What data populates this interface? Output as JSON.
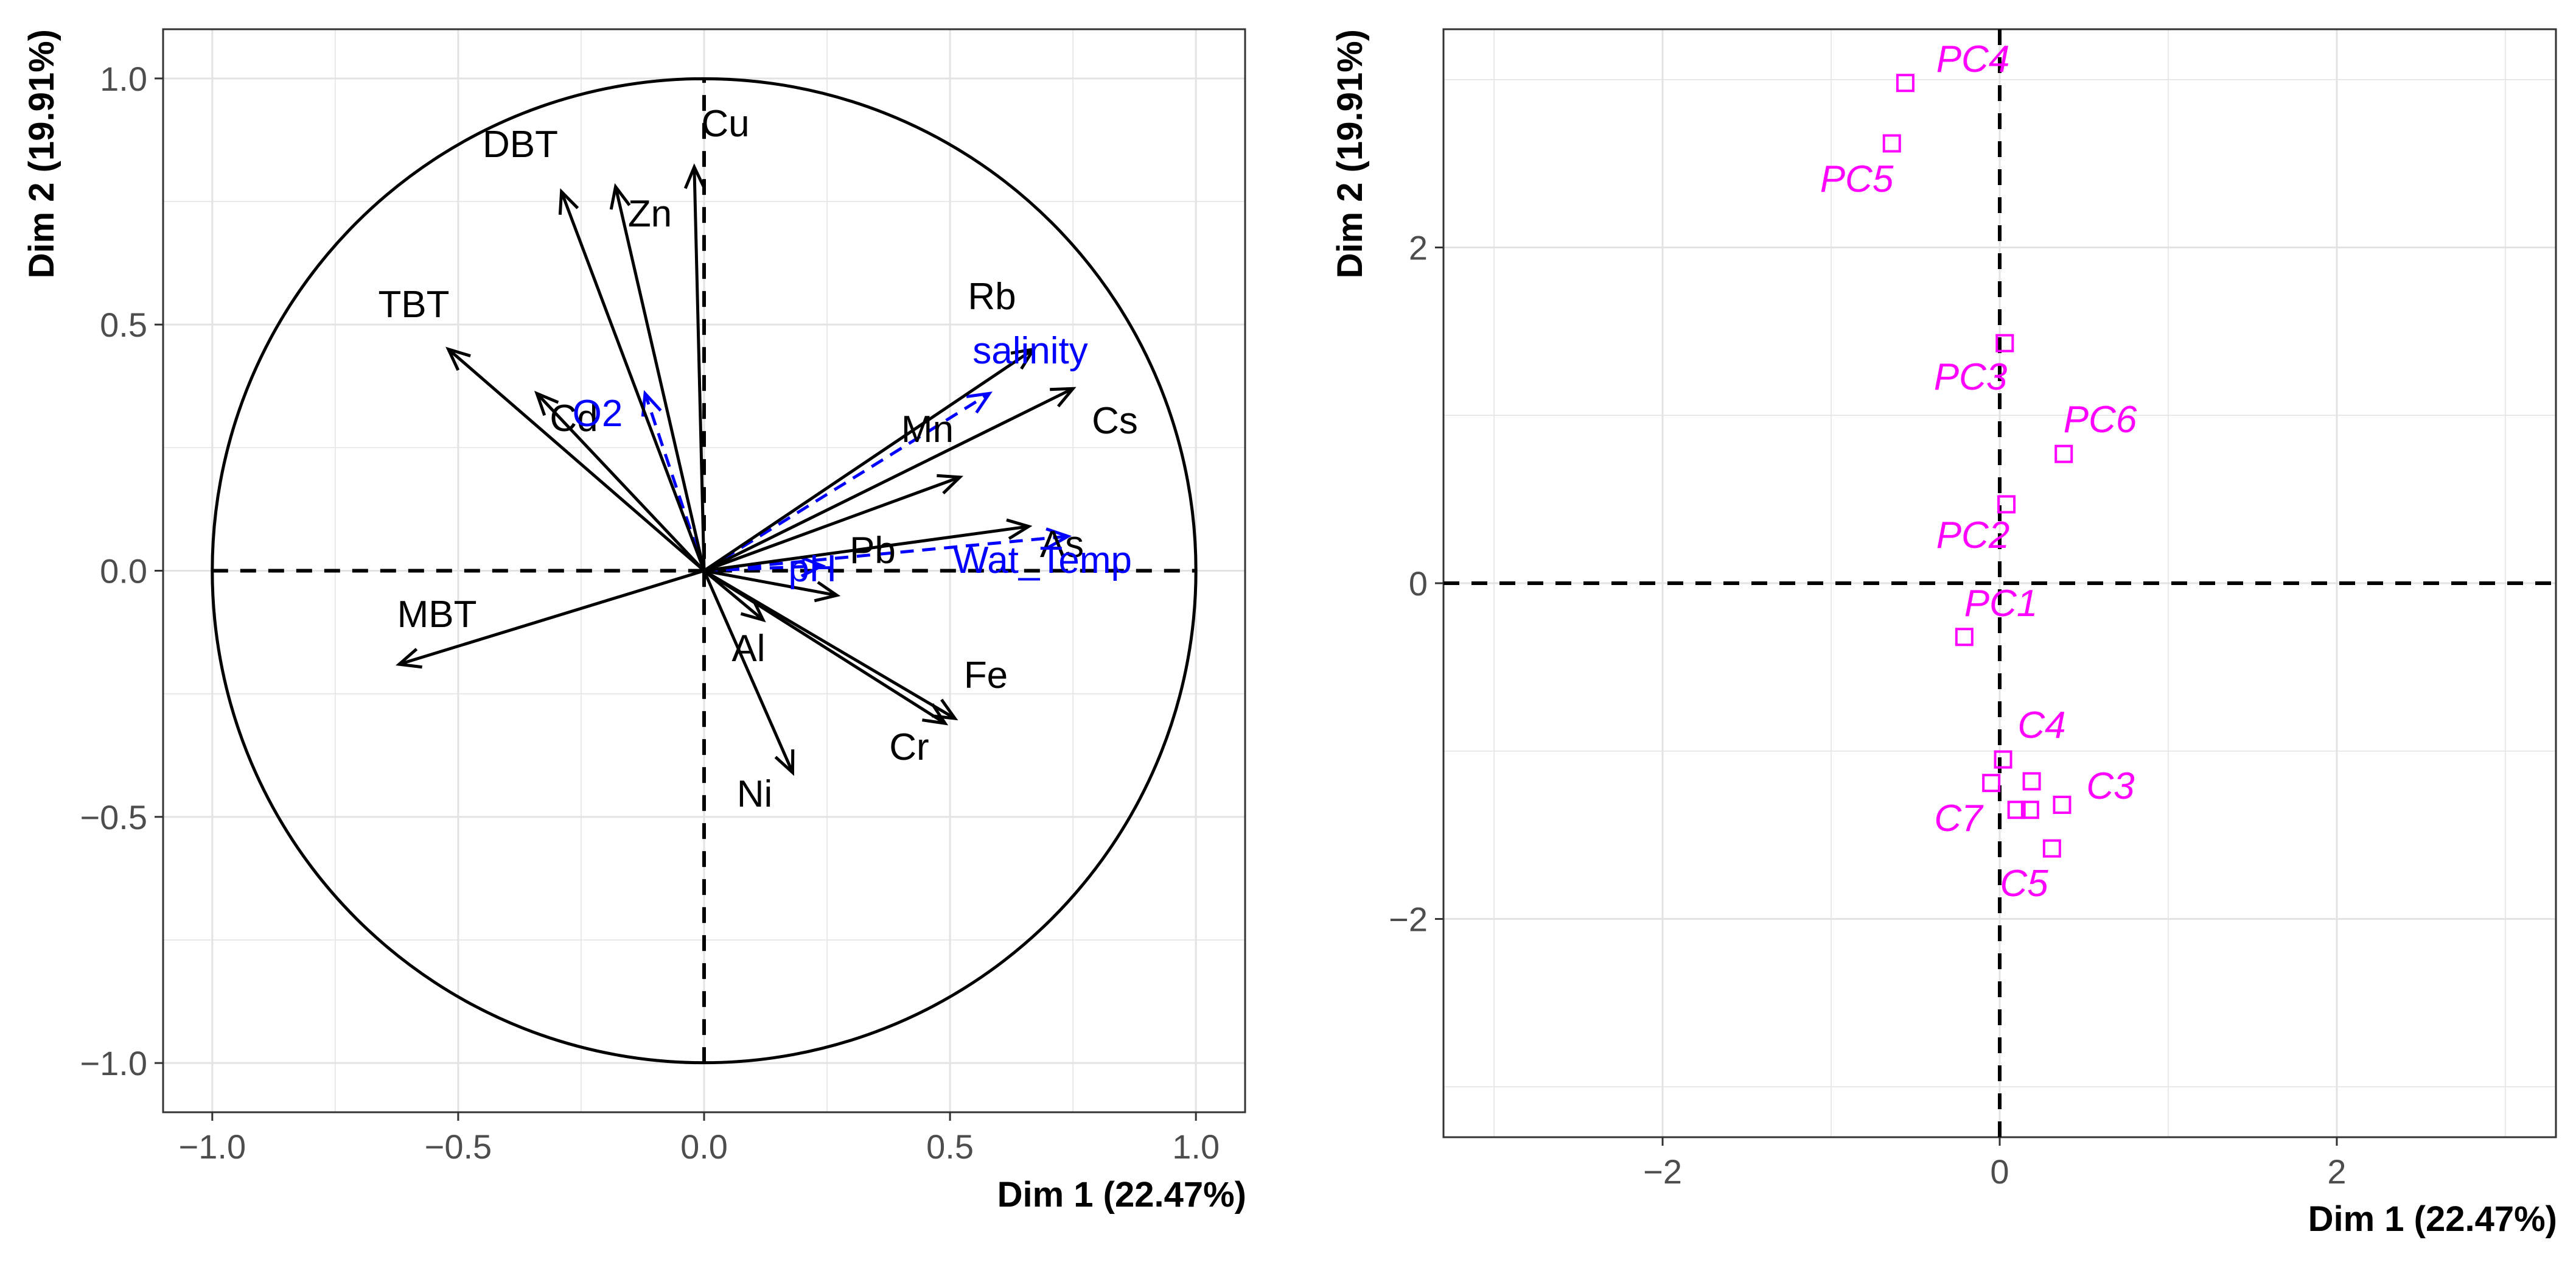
{
  "chart_data": [
    {
      "type": "scatter",
      "subtype": "pca-variables-correlation-circle",
      "xlabel": "Dim 1 (22.47%)",
      "ylabel": "Dim 2 (19.91%)",
      "xlim": [
        -1.1,
        1.1
      ],
      "ylim": [
        -1.1,
        1.1
      ],
      "x_ticks": [
        -1.0,
        -0.5,
        0.0,
        0.5,
        1.0
      ],
      "y_ticks": [
        -1.0,
        -0.5,
        0.0,
        0.5,
        1.0
      ],
      "x_tick_labels": [
        "−1.0",
        "−0.5",
        "0.0",
        "0.5",
        "1.0"
      ],
      "y_tick_labels": [
        "−1.0",
        "−0.5",
        "0.0",
        "0.5",
        "1.0"
      ],
      "grid": true,
      "unit_circle": true,
      "colors": {
        "active": "#000000",
        "supplementary": "#0000ff",
        "grid": "#e5e5e5",
        "tick": "#4d4d4d"
      },
      "active_variables": [
        {
          "label": "DBT",
          "x": -0.29,
          "y": 0.77
        },
        {
          "label": "Zn",
          "x": -0.18,
          "y": 0.78
        },
        {
          "label": "Cu",
          "x": -0.02,
          "y": 0.82
        },
        {
          "label": "TBT",
          "x": -0.52,
          "y": 0.45
        },
        {
          "label": "Cd",
          "x": -0.34,
          "y": 0.36
        },
        {
          "label": "Rb",
          "x": 0.67,
          "y": 0.45
        },
        {
          "label": "Cs",
          "x": 0.75,
          "y": 0.37
        },
        {
          "label": "Mn",
          "x": 0.52,
          "y": 0.19
        },
        {
          "label": "As",
          "x": 0.66,
          "y": 0.09
        },
        {
          "label": "Pb",
          "x": 0.27,
          "y": -0.05
        },
        {
          "label": "Al",
          "x": 0.12,
          "y": -0.1
        },
        {
          "label": "Fe",
          "x": 0.51,
          "y": -0.3
        },
        {
          "label": "Cr",
          "x": 0.49,
          "y": -0.31
        },
        {
          "label": "Ni",
          "x": 0.18,
          "y": -0.41
        },
        {
          "label": "MBT",
          "x": -0.62,
          "y": -0.19
        }
      ],
      "supplementary_variables": [
        {
          "label": "salinity",
          "x": 0.58,
          "y": 0.36
        },
        {
          "label": "O2",
          "x": -0.12,
          "y": 0.36
        },
        {
          "label": "Wat_Temp",
          "x": 0.74,
          "y": 0.07
        },
        {
          "label": "pH",
          "x": 0.24,
          "y": 0.01
        }
      ]
    },
    {
      "type": "scatter",
      "subtype": "pca-individuals",
      "xlabel": "Dim 1 (22.47%)",
      "ylabel": "Dim 2 (19.91%)",
      "xlim": [
        -3.3,
        3.3
      ],
      "ylim": [
        -3.3,
        3.3
      ],
      "x_ticks": [
        -2,
        0,
        2
      ],
      "y_ticks": [
        -2,
        0,
        2
      ],
      "x_tick_labels": [
        "−2",
        "0",
        "2"
      ],
      "y_tick_labels": [
        "−2",
        "0",
        "2"
      ],
      "grid": true,
      "marker": "open-square",
      "color": "#ff00ff",
      "points": [
        {
          "label": "PC4",
          "x": -0.56,
          "y": 2.98
        },
        {
          "label": "PC5",
          "x": -0.64,
          "y": 2.62
        },
        {
          "label": "PC3",
          "x": 0.03,
          "y": 1.43
        },
        {
          "label": "PC6",
          "x": 0.38,
          "y": 0.77
        },
        {
          "label": "PC2",
          "x": 0.04,
          "y": 0.47
        },
        {
          "label": "PC1",
          "x": -0.21,
          "y": -0.32
        },
        {
          "label": "C4",
          "x": 0.02,
          "y": -1.05
        },
        {
          "label": "C3",
          "x": 0.37,
          "y": -1.32
        },
        {
          "label": "C7",
          "x": -0.05,
          "y": -1.19
        },
        {
          "label": "C5",
          "x": 0.31,
          "y": -1.58
        },
        {
          "label": "",
          "x": 0.1,
          "y": -1.35
        },
        {
          "label": "",
          "x": 0.18,
          "y": -1.35
        },
        {
          "label": "",
          "x": 0.19,
          "y": -1.18
        }
      ]
    }
  ]
}
